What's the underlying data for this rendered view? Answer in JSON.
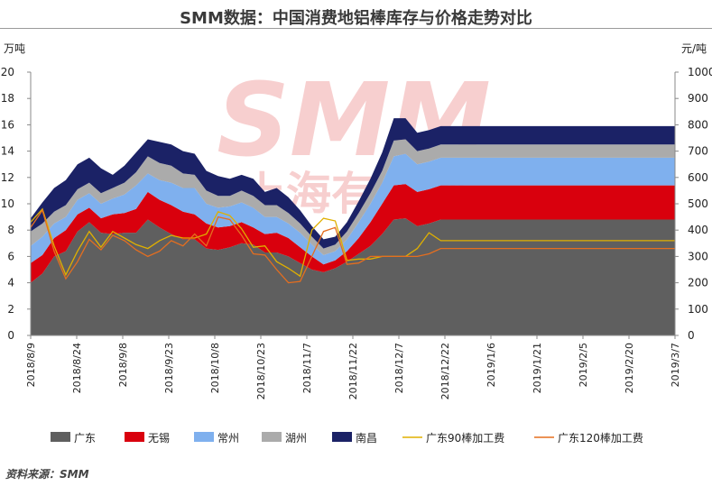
{
  "title": "SMM数据：中国消费地铝棒库存与价格走势对比",
  "source_note": "资料来源：SMM",
  "watermark": {
    "latin": "SMM",
    "chinese": "上海有色网",
    "color": "#f2a9a9"
  },
  "chart_data": {
    "type": "area",
    "stacked": true,
    "title": "SMM数据：中国消费地铝棒库存与价格走势对比",
    "ylabel_left": "万吨",
    "ylabel_right": "元/吨",
    "ylim_left": [
      0,
      20
    ],
    "ylim_right": [
      0,
      1000
    ],
    "yticks_left": [
      "0",
      "2",
      "4",
      "6",
      "8",
      "10",
      "12",
      "14",
      "16",
      "18",
      "20"
    ],
    "yticks_right": [
      "0",
      "100",
      "200",
      "300",
      "400",
      "500",
      "600",
      "700",
      "800",
      "900",
      "1000"
    ],
    "x_tick_labels": [
      "2018/8/9",
      "2018/8/24",
      "2018/9/8",
      "2018/9/23",
      "2018/10/8",
      "2018/10/23",
      "2018/11/7",
      "2018/11/22",
      "2018/12/7",
      "2018/12/22",
      "2019/1/6",
      "2019/1/21",
      "2019/2/5",
      "2019/2/20",
      "2019/3/7"
    ],
    "x_tick_index": [
      0,
      3,
      6,
      9,
      12,
      15,
      18,
      21,
      24,
      27,
      30,
      33,
      36,
      39,
      42
    ],
    "x": [
      "2018/8/9",
      "2018/8/13",
      "2018/8/16",
      "2018/8/20",
      "2018/8/23",
      "2018/8/27",
      "2018/8/30",
      "2018/9/3",
      "2018/9/6",
      "2018/9/10",
      "2018/9/13",
      "2018/9/17",
      "2018/9/20",
      "2018/9/25",
      "2018/9/27",
      "2018/10/8",
      "2018/10/11",
      "2018/10/15",
      "2018/10/18",
      "2018/10/22",
      "2018/10/25",
      "2018/10/29",
      "2018/11/1",
      "2018/11/5",
      "2018/11/8",
      "2018/11/12",
      "2018/11/15",
      "2018/11/19",
      "2018/11/22",
      "2018/11/26",
      "2018/11/29",
      "2018/12/3",
      "2018/12/6",
      "2018/12/10",
      "2018/12/13",
      "2018/12/17",
      "2018/12/20",
      "2018/12/24",
      "2018/12/27",
      "2019/1/3",
      "2019/1/7",
      "2019/1/10",
      "2019/1/14",
      "2019/1/17",
      "2019/1/21",
      "2019/1/24",
      "2019/1/28",
      "2019/1/31",
      "2019/2/11",
      "2019/2/14",
      "2019/2/18",
      "2019/2/21",
      "2019/2/25",
      "2019/2/28",
      "2019/3/4",
      "2019/3/7"
    ],
    "series": [
      {
        "name": "广东",
        "kind": "area",
        "axis": "left",
        "color": "#5f5f5f",
        "values": [
          4.0,
          4.7,
          6.0,
          6.4,
          7.9,
          8.6,
          7.8,
          7.7,
          7.8,
          7.8,
          8.8,
          8.2,
          7.7,
          7.3,
          7.3,
          6.6,
          6.5,
          6.7,
          7.0,
          6.9,
          6.3,
          6.3,
          6.0,
          5.5,
          5.0,
          4.8,
          5.1,
          5.6,
          6.2,
          6.8,
          7.7,
          8.8,
          8.9,
          8.3,
          8.5,
          8.8,
          8.8,
          8.8,
          8.8,
          8.8,
          8.8,
          8.8,
          8.8,
          8.8,
          8.8,
          8.8,
          8.8,
          8.8,
          8.8,
          8.8,
          8.8,
          8.8,
          8.8,
          8.8,
          8.8,
          8.8
        ]
      },
      {
        "name": "无锡",
        "kind": "area",
        "axis": "left",
        "color": "#d9000d",
        "values": [
          1.5,
          1.4,
          1.4,
          1.6,
          1.3,
          1.1,
          1.1,
          1.5,
          1.5,
          1.8,
          2.1,
          2.1,
          2.2,
          2.1,
          1.9,
          1.9,
          1.7,
          1.6,
          1.6,
          1.3,
          1.4,
          1.5,
          1.4,
          1.2,
          1.0,
          0.6,
          0.6,
          0.8,
          1.2,
          1.8,
          2.3,
          2.6,
          2.6,
          2.6,
          2.6,
          2.6,
          2.6,
          2.6,
          2.6,
          2.6,
          2.6,
          2.6,
          2.6,
          2.6,
          2.6,
          2.6,
          2.6,
          2.6,
          2.6,
          2.6,
          2.6,
          2.6,
          2.6,
          2.6,
          2.6,
          2.6
        ]
      },
      {
        "name": "常州",
        "kind": "area",
        "axis": "left",
        "color": "#7fb0ee",
        "values": [
          1.3,
          1.4,
          1.1,
          1.0,
          1.1,
          1.1,
          1.1,
          1.2,
          1.4,
          1.8,
          1.4,
          1.5,
          1.7,
          1.8,
          2.0,
          1.5,
          1.5,
          1.5,
          1.5,
          1.5,
          1.3,
          1.2,
          1.1,
          1.1,
          0.9,
          0.7,
          0.7,
          0.9,
          1.2,
          1.4,
          1.6,
          2.2,
          2.3,
          2.1,
          2.1,
          2.1,
          2.1,
          2.1,
          2.1,
          2.1,
          2.1,
          2.1,
          2.1,
          2.1,
          2.1,
          2.1,
          2.1,
          2.1,
          2.1,
          2.1,
          2.1,
          2.1,
          2.1,
          2.1,
          2.1,
          2.1
        ]
      },
      {
        "name": "湖州",
        "kind": "area",
        "axis": "left",
        "color": "#ababab",
        "values": [
          1.1,
          1.0,
          0.9,
          0.9,
          0.8,
          0.8,
          0.8,
          0.8,
          0.9,
          1.0,
          1.3,
          1.3,
          1.3,
          1.1,
          1.0,
          1.0,
          0.9,
          0.8,
          0.9,
          0.9,
          0.9,
          0.9,
          0.8,
          0.7,
          0.6,
          0.5,
          0.5,
          0.6,
          0.7,
          0.8,
          0.9,
          1.2,
          1.1,
          1.0,
          1.0,
          1.0,
          1.0,
          1.0,
          1.0,
          1.0,
          1.0,
          1.0,
          1.0,
          1.0,
          1.0,
          1.0,
          1.0,
          1.0,
          1.0,
          1.0,
          1.0,
          1.0,
          1.0,
          1.0,
          1.0,
          1.0
        ]
      },
      {
        "name": "南昌",
        "kind": "area",
        "axis": "left",
        "color": "#1b2266",
        "values": [
          1.0,
          1.6,
          1.8,
          1.9,
          1.9,
          1.9,
          1.9,
          1.0,
          1.3,
          1.5,
          1.3,
          1.6,
          1.6,
          1.7,
          1.6,
          1.5,
          1.5,
          1.3,
          1.2,
          1.3,
          1.0,
          1.3,
          1.2,
          1.0,
          0.8,
          0.7,
          0.6,
          0.7,
          0.9,
          1.1,
          1.4,
          1.7,
          1.6,
          1.4,
          1.4,
          1.4,
          1.4,
          1.4,
          1.4,
          1.4,
          1.4,
          1.4,
          1.4,
          1.4,
          1.4,
          1.4,
          1.4,
          1.4,
          1.4,
          1.4,
          1.4,
          1.4,
          1.4,
          1.4,
          1.4,
          1.4
        ]
      },
      {
        "name": "广东90棒加工费",
        "kind": "line",
        "axis": "right",
        "color": "#e0b000",
        "values": [
          430,
          480,
          340,
          230,
          320,
          395,
          335,
          395,
          370,
          345,
          330,
          360,
          380,
          370,
          370,
          385,
          470,
          455,
          405,
          335,
          340,
          280,
          255,
          225,
          400,
          445,
          435,
          285,
          290,
          290,
          300,
          300,
          300,
          330,
          390,
          360,
          360,
          360,
          360,
          360,
          360,
          360,
          360,
          360,
          360,
          360,
          360,
          360,
          360,
          360,
          360,
          360,
          360,
          360,
          360,
          360
        ]
      },
      {
        "name": "广东120棒加工费",
        "kind": "line",
        "axis": "right",
        "color": "#e56e1f",
        "values": [
          410,
          475,
          320,
          215,
          280,
          365,
          325,
          380,
          360,
          325,
          300,
          320,
          360,
          340,
          385,
          340,
          450,
          440,
          380,
          310,
          305,
          250,
          200,
          205,
          300,
          395,
          410,
          270,
          275,
          300,
          300,
          300,
          300,
          300,
          310,
          330,
          330,
          330,
          330,
          330,
          330,
          330,
          330,
          330,
          330,
          330,
          330,
          330,
          330,
          330,
          330,
          330,
          330,
          330,
          330,
          330
        ]
      }
    ],
    "legend": {
      "position": "bottom",
      "entries": [
        "广东",
        "无锡",
        "常州",
        "湖州",
        "南昌",
        "广东90棒加工费",
        "广东120棒加工费"
      ]
    },
    "grid": false
  }
}
